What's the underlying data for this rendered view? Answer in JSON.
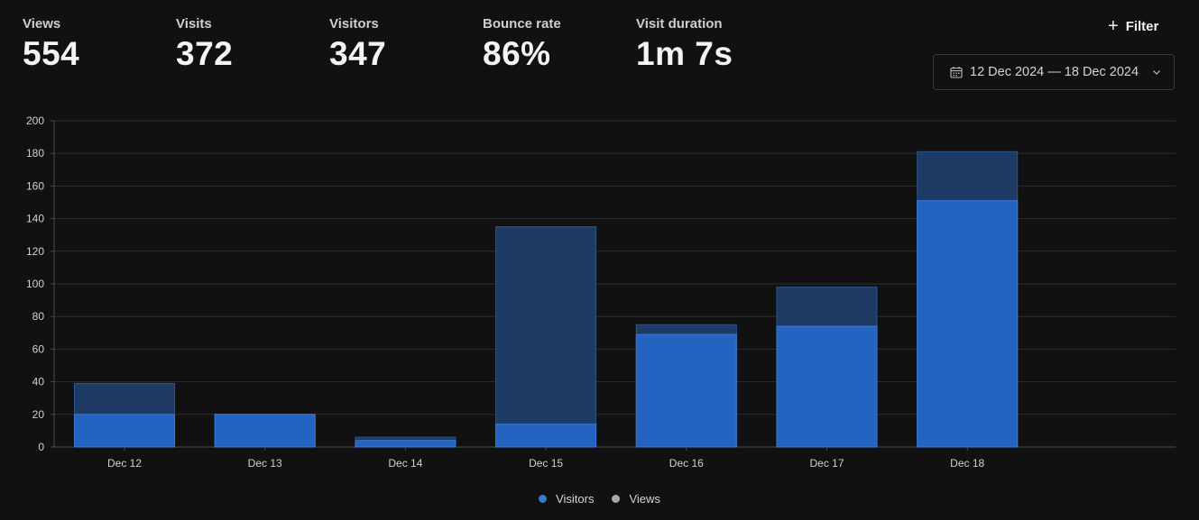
{
  "stats": [
    {
      "label": "Views",
      "value": "554"
    },
    {
      "label": "Visits",
      "value": "372"
    },
    {
      "label": "Visitors",
      "value": "347"
    },
    {
      "label": "Bounce rate",
      "value": "86%"
    },
    {
      "label": "Visit duration",
      "value": "1m 7s"
    }
  ],
  "filter": {
    "label": "Filter",
    "icon": "plus-icon"
  },
  "date_range": {
    "label": "12 Dec 2024 — 18 Dec 2024",
    "icon": "calendar-icon"
  },
  "colors": {
    "visitors": "#2563c0",
    "views": "#1e3b66",
    "visitors_dot": "#3b78d4",
    "views_dot": "#a8a8a8",
    "grid": "#2e2e2e",
    "axis": "#4a4a4a"
  },
  "chart_data": {
    "type": "bar",
    "categories": [
      "Dec 12",
      "Dec 13",
      "Dec 14",
      "Dec 15",
      "Dec 16",
      "Dec 17",
      "Dec 18"
    ],
    "series": [
      {
        "name": "Visitors",
        "values": [
          20,
          20,
          4,
          14,
          69,
          74,
          151
        ]
      },
      {
        "name": "Views",
        "values": [
          39,
          20,
          6,
          135,
          75,
          98,
          181
        ]
      }
    ],
    "ylim": [
      0,
      200
    ],
    "yticks": [
      0,
      20,
      40,
      60,
      80,
      100,
      120,
      140,
      160,
      180,
      200
    ],
    "grid": true,
    "legend": "bottom-center"
  },
  "legend": [
    {
      "label": "Visitors",
      "key": "visitors_dot"
    },
    {
      "label": "Views",
      "key": "views_dot"
    }
  ]
}
